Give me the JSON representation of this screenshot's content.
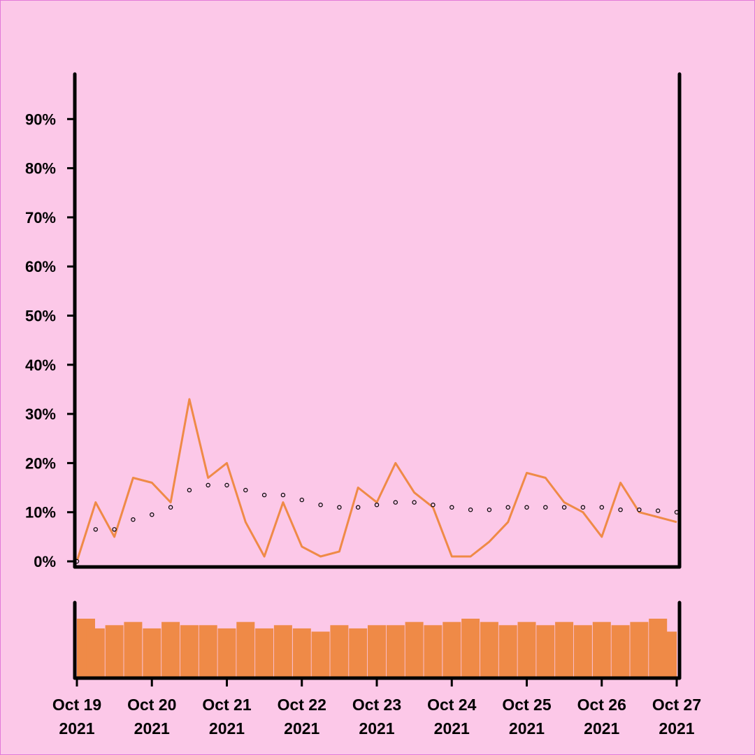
{
  "colors": {
    "background": "#fcc8e8",
    "series": "#ef8a47",
    "axis": "#000000",
    "marker_fill": "#fcc8e8",
    "marker_stroke": "#000000"
  },
  "chart_data": [
    {
      "type": "line",
      "title": "",
      "xlabel": "",
      "ylabel": "",
      "ylim": [
        0,
        100
      ],
      "xlim": [
        "2021-10-19",
        "2021-10-27"
      ],
      "grid": false,
      "yticks": [
        0,
        10,
        20,
        30,
        40,
        50,
        60,
        70,
        80,
        90
      ],
      "ytick_labels": [
        "0%",
        "10%",
        "20%",
        "30%",
        "40%",
        "50%",
        "60%",
        "70%",
        "80%",
        "90%"
      ],
      "series": [
        {
          "style": "line",
          "color": "#ef8a47",
          "x": [
            "2021-10-19 00:00",
            "2021-10-19 06:00",
            "2021-10-19 12:00",
            "2021-10-19 18:00",
            "2021-10-20 00:00",
            "2021-10-20 06:00",
            "2021-10-20 12:00",
            "2021-10-20 18:00",
            "2021-10-21 00:00",
            "2021-10-21 06:00",
            "2021-10-21 12:00",
            "2021-10-21 18:00",
            "2021-10-22 00:00",
            "2021-10-22 06:00",
            "2021-10-22 12:00",
            "2021-10-22 18:00",
            "2021-10-23 00:00",
            "2021-10-23 06:00",
            "2021-10-23 12:00",
            "2021-10-23 18:00",
            "2021-10-24 00:00",
            "2021-10-24 06:00",
            "2021-10-24 12:00",
            "2021-10-24 18:00",
            "2021-10-25 00:00",
            "2021-10-25 06:00",
            "2021-10-25 12:00",
            "2021-10-25 18:00",
            "2021-10-26 00:00",
            "2021-10-26 06:00",
            "2021-10-26 12:00",
            "2021-10-26 18:00",
            "2021-10-27 00:00"
          ],
          "y": [
            0,
            12,
            5,
            17,
            16,
            12,
            33,
            17,
            20,
            8,
            1,
            12,
            3,
            1,
            2,
            15,
            12,
            20,
            14,
            11,
            1,
            1,
            4,
            8,
            18,
            17,
            12,
            10,
            5,
            16,
            10,
            9,
            8
          ]
        },
        {
          "style": "dots",
          "x": [
            "2021-10-19 00:00",
            "2021-10-19 06:00",
            "2021-10-19 12:00",
            "2021-10-19 18:00",
            "2021-10-20 00:00",
            "2021-10-20 06:00",
            "2021-10-20 12:00",
            "2021-10-20 18:00",
            "2021-10-21 00:00",
            "2021-10-21 06:00",
            "2021-10-21 12:00",
            "2021-10-21 18:00",
            "2021-10-22 00:00",
            "2021-10-22 06:00",
            "2021-10-22 12:00",
            "2021-10-22 18:00",
            "2021-10-23 00:00",
            "2021-10-23 06:00",
            "2021-10-23 12:00",
            "2021-10-23 18:00",
            "2021-10-24 00:00",
            "2021-10-24 06:00",
            "2021-10-24 12:00",
            "2021-10-24 18:00",
            "2021-10-25 00:00",
            "2021-10-25 06:00",
            "2021-10-25 12:00",
            "2021-10-25 18:00",
            "2021-10-26 00:00",
            "2021-10-26 06:00",
            "2021-10-26 12:00",
            "2021-10-26 18:00",
            "2021-10-27 00:00"
          ],
          "y": [
            0,
            6.5,
            6.5,
            8.5,
            9.5,
            11,
            14.5,
            15.5,
            15.5,
            14.5,
            13.5,
            13.5,
            12.5,
            11.5,
            11,
            11,
            11.5,
            12,
            12,
            11.5,
            11,
            10.5,
            10.5,
            11,
            11,
            11,
            11,
            11,
            11,
            10.5,
            10.5,
            10.3,
            10
          ]
        }
      ]
    },
    {
      "type": "bar",
      "title": "",
      "xlabel": "",
      "ylabel": "",
      "ylim": [
        0,
        1.15
      ],
      "xticks": [
        "Oct 19 2021",
        "Oct 20 2021",
        "Oct 21 2021",
        "Oct 22 2021",
        "Oct 23 2021",
        "Oct 24 2021",
        "Oct 25 2021",
        "Oct 26 2021",
        "Oct 27 2021"
      ],
      "xtick_labels": [
        {
          "month_day": "Oct 19",
          "year": "2021"
        },
        {
          "month_day": "Oct 20",
          "year": "2021"
        },
        {
          "month_day": "Oct 21",
          "year": "2021"
        },
        {
          "month_day": "Oct 22",
          "year": "2021"
        },
        {
          "month_day": "Oct 23",
          "year": "2021"
        },
        {
          "month_day": "Oct 24",
          "year": "2021"
        },
        {
          "month_day": "Oct 25",
          "year": "2021"
        },
        {
          "month_day": "Oct 26",
          "year": "2021"
        },
        {
          "month_day": "Oct 27",
          "year": "2021"
        }
      ],
      "color": "#ef8a47",
      "x": [
        "2021-10-19 00:00",
        "2021-10-19 06:00",
        "2021-10-19 12:00",
        "2021-10-19 18:00",
        "2021-10-20 00:00",
        "2021-10-20 06:00",
        "2021-10-20 12:00",
        "2021-10-20 18:00",
        "2021-10-21 00:00",
        "2021-10-21 06:00",
        "2021-10-21 12:00",
        "2021-10-21 18:00",
        "2021-10-22 00:00",
        "2021-10-22 06:00",
        "2021-10-22 12:00",
        "2021-10-22 18:00",
        "2021-10-23 00:00",
        "2021-10-23 06:00",
        "2021-10-23 12:00",
        "2021-10-23 18:00",
        "2021-10-24 00:00",
        "2021-10-24 06:00",
        "2021-10-24 12:00",
        "2021-10-24 18:00",
        "2021-10-25 00:00",
        "2021-10-25 06:00",
        "2021-10-25 12:00",
        "2021-10-25 18:00",
        "2021-10-26 00:00",
        "2021-10-26 06:00",
        "2021-10-26 12:00",
        "2021-10-26 18:00",
        "2021-10-27 00:00"
      ],
      "values": [
        0.9,
        0.75,
        0.8,
        0.85,
        0.75,
        0.85,
        0.8,
        0.8,
        0.75,
        0.85,
        0.75,
        0.8,
        0.75,
        0.7,
        0.8,
        0.75,
        0.8,
        0.8,
        0.85,
        0.8,
        0.85,
        0.9,
        0.85,
        0.8,
        0.85,
        0.8,
        0.85,
        0.8,
        0.85,
        0.8,
        0.85,
        0.9,
        0.7
      ]
    }
  ]
}
